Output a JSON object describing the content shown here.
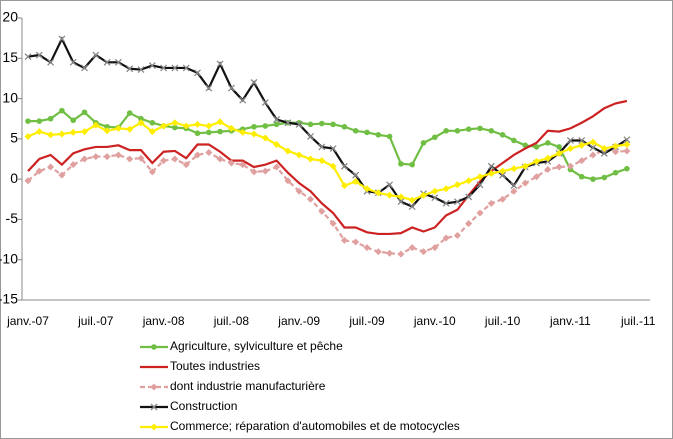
{
  "chart_data": {
    "type": "line",
    "categories": [
      "janv.-07",
      null,
      null,
      null,
      null,
      null,
      "juil.-07",
      null,
      null,
      null,
      null,
      null,
      "janv.-08",
      null,
      null,
      null,
      null,
      null,
      "juil.-08",
      null,
      null,
      null,
      null,
      null,
      "janv.-09",
      null,
      null,
      null,
      null,
      null,
      "juil.-09",
      null,
      null,
      null,
      null,
      null,
      "janv.-10",
      null,
      null,
      null,
      null,
      null,
      "juil.-10",
      null,
      null,
      null,
      null,
      null,
      "janv.-11",
      null,
      null,
      null,
      null,
      null,
      "juil.-11"
    ],
    "ylim": [
      -15,
      20
    ],
    "yticks": [
      -15,
      -10,
      -5,
      0,
      5,
      10,
      15,
      20
    ],
    "series": [
      {
        "name": "Agriculture, sylviculture et pêche",
        "color": "#70bf44",
        "marker": "circle",
        "dash": false,
        "values": [
          7.2,
          7.2,
          7.5,
          8.5,
          7.3,
          8.3,
          7.0,
          6.5,
          6.4,
          8.2,
          7.5,
          7.0,
          6.6,
          6.4,
          6.3,
          5.7,
          5.8,
          5.9,
          6.0,
          6.2,
          6.5,
          6.6,
          6.8,
          7.0,
          7.0,
          6.8,
          6.9,
          6.8,
          6.5,
          6.0,
          5.8,
          5.5,
          5.3,
          1.9,
          1.8,
          4.5,
          5.2,
          6.0,
          6.0,
          6.2,
          6.3,
          6.0,
          5.5,
          4.8,
          4.2,
          4.0,
          4.5,
          4.0,
          1.2,
          0.3,
          0.0,
          0.2,
          0.8,
          1.3,
          null
        ]
      },
      {
        "name": "Toutes industries",
        "color": "#cc2222",
        "marker": "none",
        "dash": false,
        "values": [
          1.0,
          2.5,
          3.0,
          1.8,
          3.2,
          3.7,
          4.0,
          4.0,
          4.2,
          3.6,
          3.6,
          2.0,
          3.4,
          3.5,
          2.6,
          4.3,
          4.3,
          3.4,
          2.3,
          2.3,
          1.5,
          1.8,
          2.3,
          0.8,
          -0.5,
          -1.5,
          -3.0,
          -4.2,
          -6.0,
          -6.0,
          -6.6,
          -6.8,
          -6.8,
          -6.7,
          -6.0,
          -6.5,
          -6.0,
          -4.5,
          -3.8,
          -2.0,
          -0.3,
          1.0,
          2.0,
          3.0,
          3.8,
          4.5,
          6.0,
          5.9,
          6.3,
          7.0,
          7.8,
          8.8,
          9.4,
          9.7,
          null
        ]
      },
      {
        "name": "dont industrie manufacturière",
        "color": "#e0a0a0",
        "marker": "diamond",
        "dash": true,
        "values": [
          -0.2,
          1.0,
          1.5,
          0.5,
          1.8,
          2.5,
          2.8,
          2.8,
          3.0,
          2.5,
          2.6,
          0.9,
          2.3,
          2.5,
          1.8,
          3.0,
          3.3,
          2.5,
          2.0,
          1.8,
          0.9,
          1.0,
          1.5,
          -0.2,
          -1.5,
          -2.5,
          -4.0,
          -5.5,
          -7.6,
          -7.8,
          -8.5,
          -9.0,
          -9.2,
          -9.3,
          -8.5,
          -9.0,
          -8.5,
          -7.3,
          -7.0,
          -5.5,
          -4.2,
          -3.0,
          -2.5,
          -1.5,
          -0.5,
          0.3,
          1.2,
          1.5,
          1.6,
          2.3,
          3.0,
          3.6,
          3.4,
          3.5,
          null
        ]
      },
      {
        "name": "Construction",
        "color": "#111111",
        "marker": "x",
        "dash": false,
        "values": [
          15.2,
          15.4,
          14.5,
          17.4,
          14.5,
          13.8,
          15.4,
          14.5,
          14.5,
          13.7,
          13.6,
          14.1,
          13.8,
          13.8,
          13.8,
          13.2,
          11.3,
          14.3,
          11.3,
          9.8,
          12.0,
          9.5,
          7.4,
          7.0,
          6.8,
          5.3,
          4.0,
          3.8,
          1.6,
          0.5,
          -1.5,
          -1.7,
          -0.7,
          -2.8,
          -3.4,
          -1.8,
          -2.3,
          -3.0,
          -2.8,
          -2.2,
          -0.7,
          1.6,
          0.5,
          -0.8,
          1.5,
          2.0,
          2.2,
          3.2,
          4.8,
          4.8,
          3.9,
          3.2,
          4.0,
          4.9,
          null
        ]
      },
      {
        "name": "Commerce; réparation d'automobiles et de motocycles",
        "color": "#ffee00",
        "marker": "diamond",
        "dash": false,
        "values": [
          5.3,
          5.9,
          5.5,
          5.6,
          5.8,
          5.9,
          6.7,
          6.0,
          6.3,
          6.2,
          7.0,
          5.9,
          6.6,
          7.0,
          6.6,
          6.8,
          6.6,
          7.1,
          6.3,
          5.8,
          5.6,
          5.1,
          4.3,
          3.5,
          3.0,
          2.5,
          2.3,
          1.6,
          -0.8,
          -0.3,
          -1.2,
          -1.7,
          -2.0,
          -2.2,
          -2.6,
          -2.0,
          -1.5,
          -1.2,
          -0.7,
          -0.2,
          0.3,
          0.7,
          1.0,
          1.3,
          1.6,
          2.2,
          2.6,
          3.2,
          3.8,
          4.2,
          4.6,
          3.8,
          4.1,
          4.3,
          null
        ]
      }
    ]
  }
}
